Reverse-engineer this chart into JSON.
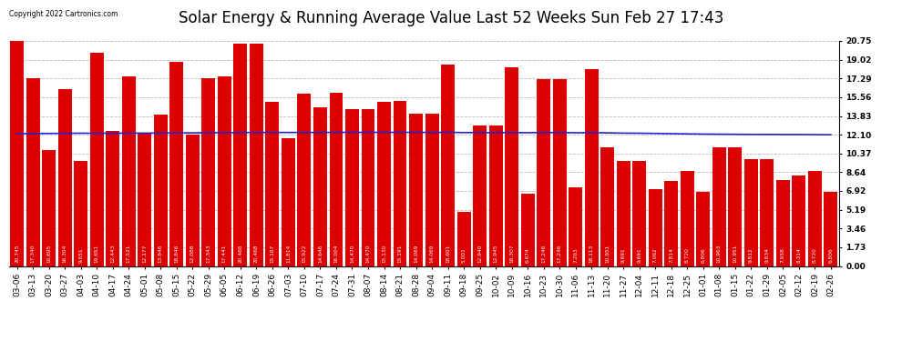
{
  "title": "Solar Energy & Running Average Value Last 52 Weeks Sun Feb 27 17:43",
  "copyright": "Copyright 2022 Cartronics.com",
  "bar_color": "#dd0000",
  "avg_line_color": "#2222cc",
  "background_color": "#ffffff",
  "grid_color": "#bbbbbb",
  "ylim": [
    0,
    20.75
  ],
  "yticks": [
    0.0,
    1.73,
    3.46,
    5.19,
    6.92,
    8.64,
    10.37,
    12.1,
    13.83,
    15.56,
    17.29,
    19.02,
    20.75
  ],
  "title_fontsize": 12,
  "tick_fontsize": 6.5,
  "labels": [
    "03-06",
    "03-13",
    "03-20",
    "03-27",
    "04-03",
    "04-10",
    "04-17",
    "04-24",
    "05-01",
    "05-08",
    "05-15",
    "05-22",
    "05-29",
    "06-05",
    "06-12",
    "06-19",
    "06-26",
    "07-03",
    "07-10",
    "07-17",
    "07-24",
    "07-31",
    "08-07",
    "08-14",
    "08-21",
    "08-28",
    "09-04",
    "09-11",
    "09-18",
    "09-25",
    "10-02",
    "10-09",
    "10-16",
    "10-23",
    "10-30",
    "11-06",
    "11-13",
    "11-20",
    "11-27",
    "12-04",
    "12-11",
    "12-18",
    "12-25",
    "01-01",
    "01-08",
    "01-15",
    "01-22",
    "01-29",
    "02-05",
    "02-12",
    "02-19",
    "02-26"
  ],
  "bar_vals": [
    20.745,
    17.34,
    10.695,
    16.304,
    9.651,
    19.651,
    12.443,
    17.521,
    12.177,
    13.946,
    18.846,
    12.088,
    17.343,
    17.441,
    20.468,
    20.468,
    15.167,
    11.814,
    15.922,
    14.646,
    16.004,
    14.47,
    14.47,
    15.13,
    15.191,
    14.069,
    14.069,
    18.601,
    5.001,
    12.94,
    12.945,
    18.307,
    6.674,
    17.246,
    17.246,
    7.263,
    18.113,
    10.951,
    9.691,
    9.691,
    7.062,
    7.814,
    8.72,
    6.806,
    10.963,
    10.951,
    9.812,
    9.834,
    7.958,
    8.314,
    8.72,
    6.806
  ],
  "avg_vals": [
    12.2,
    12.21,
    12.22,
    12.23,
    12.24,
    12.24,
    12.24,
    12.25,
    12.25,
    12.26,
    12.27,
    12.27,
    12.28,
    12.29,
    12.3,
    12.31,
    12.31,
    12.31,
    12.31,
    12.31,
    12.32,
    12.32,
    12.32,
    12.32,
    12.32,
    12.32,
    12.31,
    12.32,
    12.3,
    12.3,
    12.29,
    12.3,
    12.29,
    12.3,
    12.3,
    12.28,
    12.29,
    12.27,
    12.25,
    12.24,
    12.22,
    12.2,
    12.18,
    12.16,
    12.15,
    12.14,
    12.13,
    12.13,
    12.12,
    12.12,
    12.11,
    12.1
  ]
}
